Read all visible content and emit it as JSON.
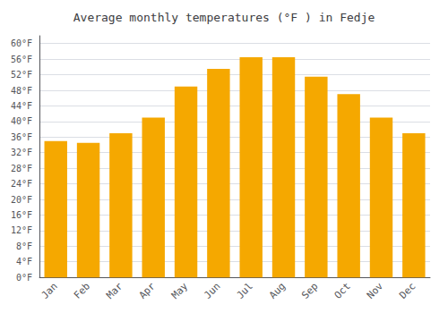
{
  "chart_data": {
    "type": "bar",
    "title": "Average monthly temperatures (°F ) in Fedje",
    "categories": [
      "Jan",
      "Feb",
      "Mar",
      "Apr",
      "May",
      "Jun",
      "Jul",
      "Aug",
      "Sep",
      "Oct",
      "Nov",
      "Dec"
    ],
    "values": [
      35.0,
      34.5,
      37.0,
      41.0,
      49.0,
      53.5,
      56.5,
      56.5,
      51.5,
      47.0,
      41.0,
      37.0
    ],
    "color": "#F5A800",
    "ylim": [
      0,
      62
    ],
    "yticks": [
      {
        "value": 0,
        "label": "0°F"
      },
      {
        "value": 4,
        "label": "4°F"
      },
      {
        "value": 8,
        "label": "8°F"
      },
      {
        "value": 12,
        "label": "12°F"
      },
      {
        "value": 16,
        "label": "16°F"
      },
      {
        "value": 20,
        "label": "20°F"
      },
      {
        "value": 24,
        "label": "24°F"
      },
      {
        "value": 28,
        "label": "28°F"
      },
      {
        "value": 32,
        "label": "32°F"
      },
      {
        "value": 36,
        "label": "36°F"
      },
      {
        "value": 40,
        "label": "40°F"
      },
      {
        "value": 44,
        "label": "44°F"
      },
      {
        "value": 48,
        "label": "48°F"
      },
      {
        "value": 52,
        "label": "52°F"
      },
      {
        "value": 56,
        "label": "56°F"
      },
      {
        "value": 60,
        "label": "60°F"
      }
    ],
    "grid": true
  }
}
